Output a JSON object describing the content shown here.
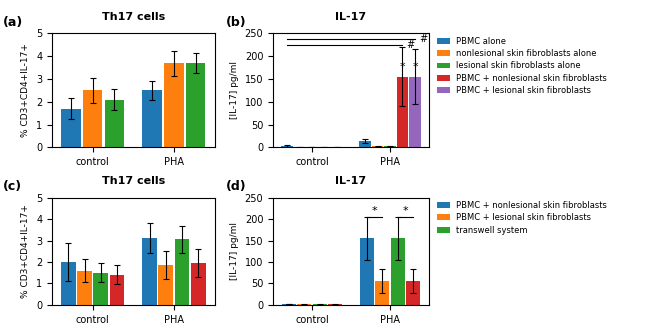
{
  "chart_data": [
    {
      "type": "bar",
      "label": "(a)",
      "title": "Th17 cells",
      "ylabel": "% CD3+CD4+IL-17+",
      "categories": [
        "control",
        "PHA"
      ],
      "ylim": [
        0,
        5
      ],
      "yticks": [
        0,
        1,
        2,
        3,
        4,
        5
      ],
      "series": [
        {
          "values": [
            1.7,
            2.5
          ],
          "errors": [
            0.45,
            0.4
          ]
        },
        {
          "values": [
            2.5,
            3.7
          ],
          "errors": [
            0.55,
            0.55
          ]
        },
        {
          "values": [
            2.1,
            3.7
          ],
          "errors": [
            0.45,
            0.45
          ]
        }
      ]
    },
    {
      "type": "bar",
      "label": "(b)",
      "title": "IL-17",
      "ylabel": "[IL-17] pg/ml",
      "categories": [
        "control",
        "PHA"
      ],
      "ylim": [
        0,
        250
      ],
      "yticks": [
        0,
        50,
        100,
        150,
        200,
        250
      ],
      "legend": "upper left",
      "series": [
        {
          "name": "PBMC alone",
          "values": [
            3,
            14
          ],
          "errors": [
            1.5,
            5
          ]
        },
        {
          "name": "nonlesional skin fibroblasts alone",
          "values": [
            1,
            2
          ],
          "errors": [
            0.5,
            1
          ]
        },
        {
          "name": "lesional skin fibroblasts alone",
          "values": [
            1,
            2
          ],
          "errors": [
            0.5,
            1
          ]
        },
        {
          "name": "PBMC + nonlesional skin fibroblasts",
          "values": [
            1,
            155
          ],
          "errors": [
            0.5,
            65
          ]
        },
        {
          "name": "PBMC + lesional skin fibroblasts",
          "values": [
            1,
            155
          ],
          "errors": [
            0.5,
            60
          ]
        }
      ],
      "annotations": [
        {
          "text": "*",
          "x": "PHA",
          "series": 3,
          "y": 165
        },
        {
          "text": "*",
          "x": "PHA",
          "series": 4,
          "y": 165
        }
      ],
      "brackets": [
        {
          "text": "#",
          "y": 238,
          "from": {
            "x": "control",
            "series": 0
          },
          "to": {
            "x": "PHA",
            "series": 4
          }
        },
        {
          "text": "#",
          "y": 225,
          "from": {
            "x": "control",
            "series": 0
          },
          "to": {
            "x": "PHA",
            "series": 3
          }
        }
      ]
    },
    {
      "type": "bar",
      "label": "(c)",
      "title": "Th17 cells",
      "ylabel": "% CD3+CD4+IL-17+",
      "categories": [
        "control",
        "PHA"
      ],
      "ylim": [
        0,
        5
      ],
      "yticks": [
        0,
        1,
        2,
        3,
        4,
        5
      ],
      "series": [
        {
          "values": [
            2.0,
            3.1
          ],
          "errors": [
            0.9,
            0.7
          ]
        },
        {
          "values": [
            1.6,
            1.85
          ],
          "errors": [
            0.55,
            0.65
          ]
        },
        {
          "values": [
            1.5,
            3.05
          ],
          "errors": [
            0.45,
            0.65
          ]
        },
        {
          "values": [
            1.4,
            1.95
          ],
          "errors": [
            0.45,
            0.65
          ]
        }
      ]
    },
    {
      "type": "bar",
      "label": "(d)",
      "title": "IL-17",
      "ylabel": "[IL-17] pg/ml",
      "categories": [
        "control",
        "PHA"
      ],
      "ylim": [
        0,
        250
      ],
      "yticks": [
        0,
        50,
        100,
        150,
        200,
        250
      ],
      "legend": "upper left",
      "series": [
        {
          "name": "PBMC + nonlesional skin fibroblasts",
          "values": [
            2,
            155
          ],
          "errors": [
            1,
            50
          ]
        },
        {
          "name": "PBMC + lesional skin fibroblasts",
          "values": [
            1,
            55
          ],
          "errors": [
            0.5,
            28
          ]
        },
        {
          "name": "transwell system",
          "values": [
            1,
            155
          ],
          "errors": [
            0.5,
            50
          ]
        },
        {
          "values": [
            1,
            55
          ],
          "errors": [
            0.5,
            28
          ]
        }
      ],
      "brackets": [
        {
          "text": "*",
          "y": 205,
          "from": {
            "x": "PHA",
            "series": 0
          },
          "to": {
            "x": "PHA",
            "series": 1
          }
        },
        {
          "text": "*",
          "y": 205,
          "from": {
            "x": "PHA",
            "series": 2
          },
          "to": {
            "x": "PHA",
            "series": 3
          }
        }
      ]
    }
  ]
}
